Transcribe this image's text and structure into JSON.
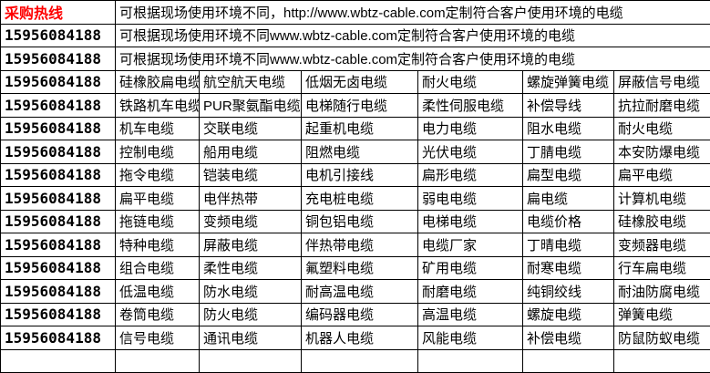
{
  "colors": {
    "hotline_text": "#ff0000",
    "body_text": "#000000",
    "border": "#000000",
    "background": "#ffffff"
  },
  "header": {
    "hotline_label": "采购热线",
    "phone": "15956084188",
    "notice_row1": "可根据现场使用环境不同，http://www.wbtz-cable.com定制符合客户使用环境的电缆",
    "notice_row2": "可根据现场使用环境不同www.wbtz-cable.com定制符合客户使用环境的电缆",
    "notice_row3": "可根据现场使用环境不同www.wbtz-cable.com定制符合客户使用环境的电缆"
  },
  "table": {
    "phone": "15956084188",
    "rows": [
      [
        "硅橡胶扁电缆",
        "航空航天电缆",
        "低烟无卤电缆",
        "耐火电缆",
        "螺旋弹簧电缆",
        "屏蔽信号电缆"
      ],
      [
        "铁路机车电缆",
        "PUR聚氨酯电缆",
        "电梯随行电缆",
        "柔性伺服电缆",
        "补偿导线",
        "抗拉耐磨电缆"
      ],
      [
        "机车电缆",
        "交联电缆",
        "起重机电缆",
        "电力电缆",
        "阻水电缆",
        "耐火电缆"
      ],
      [
        "控制电缆",
        "船用电缆",
        "阻燃电缆",
        "光伏电缆",
        "丁腈电缆",
        "本安防爆电缆"
      ],
      [
        "拖令电缆",
        "铠装电缆",
        "电机引接线",
        "扁形电缆",
        "扁型电缆",
        "扁平电缆"
      ],
      [
        "扁平电缆",
        "电伴热带",
        "充电桩电缆",
        "弱电电缆",
        "扁电缆",
        "计算机电缆"
      ],
      [
        "拖链电缆",
        "变频电缆",
        "铜包铝电缆",
        "电梯电缆",
        "电缆价格",
        "硅橡胶电缆"
      ],
      [
        "特种电缆",
        "屏蔽电缆",
        "伴热带电缆",
        "电缆厂家",
        "丁晴电缆",
        "变频器电缆"
      ],
      [
        "组合电缆",
        "柔性电缆",
        "氟塑料电缆",
        "矿用电缆",
        "耐寒电缆",
        "行车扁电缆"
      ],
      [
        "低温电缆",
        "防水电缆",
        "耐高温电缆",
        "耐磨电缆",
        "纯铜绞线",
        "耐油防腐电缆"
      ],
      [
        "卷筒电缆",
        "防火电缆",
        "编码器电缆",
        "高温电缆",
        "螺旋电缆",
        "弹簧电缆"
      ],
      [
        "信号电缆",
        "通讯电缆",
        "机器人电缆",
        "风能电缆",
        "补偿电缆",
        "防鼠防蚁电缆"
      ]
    ],
    "empty_row_cells": 7
  }
}
